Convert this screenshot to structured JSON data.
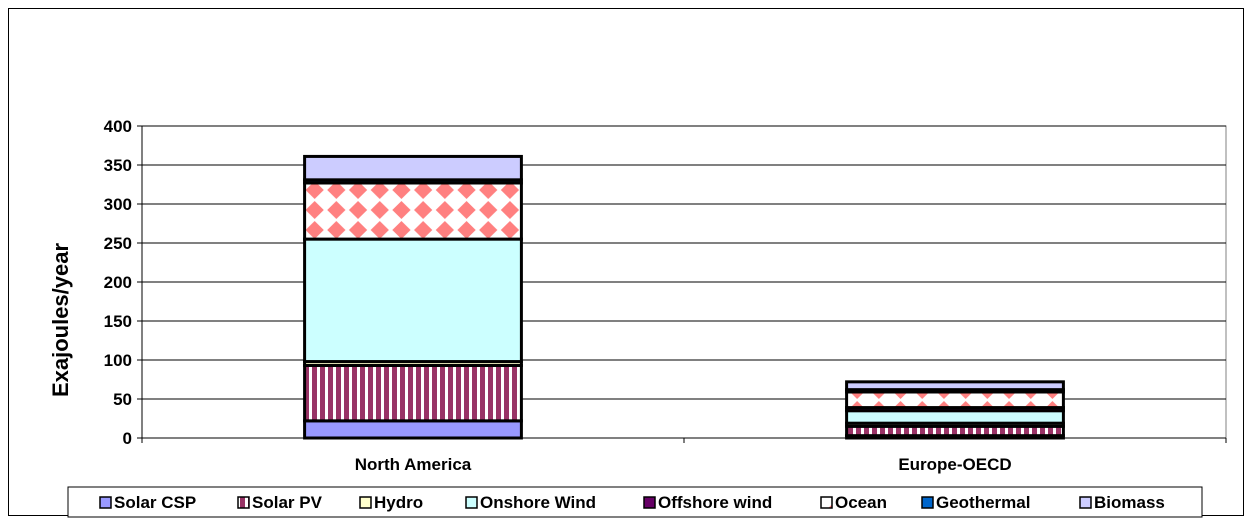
{
  "chart_data": {
    "type": "bar",
    "stacked": true,
    "ylabel": "Exajoules/year",
    "xlabel": "",
    "ylim": [
      0,
      400
    ],
    "yticks": [
      0,
      50,
      100,
      150,
      200,
      250,
      300,
      350,
      400
    ],
    "grid": true,
    "legend_position": "bottom",
    "categories": [
      "North America",
      "Europe-OECD"
    ],
    "series": [
      {
        "name": "Solar CSP",
        "values": [
          22,
          3
        ],
        "color": "#9999ff",
        "pattern": "solid"
      },
      {
        "name": "Solar PV",
        "values": [
          71,
          12
        ],
        "color": "#993366",
        "pattern": "vertical-stripes"
      },
      {
        "name": "Hydro",
        "values": [
          5,
          4
        ],
        "color": "#ffffcc",
        "pattern": "solid"
      },
      {
        "name": "Onshore Wind",
        "values": [
          157,
          16
        ],
        "color": "#ccffff",
        "pattern": "solid"
      },
      {
        "name": "Offshore wind",
        "values": [
          0,
          4
        ],
        "color": "#660066",
        "pattern": "solid"
      },
      {
        "name": "Ocean",
        "values": [
          72,
          20
        ],
        "color": "#ff8080",
        "pattern": "diamonds"
      },
      {
        "name": "Geothermal",
        "values": [
          4,
          3
        ],
        "color": "#0066cc",
        "pattern": "solid"
      },
      {
        "name": "Biomass",
        "values": [
          30,
          10
        ],
        "color": "#ccccff",
        "pattern": "solid"
      }
    ]
  }
}
